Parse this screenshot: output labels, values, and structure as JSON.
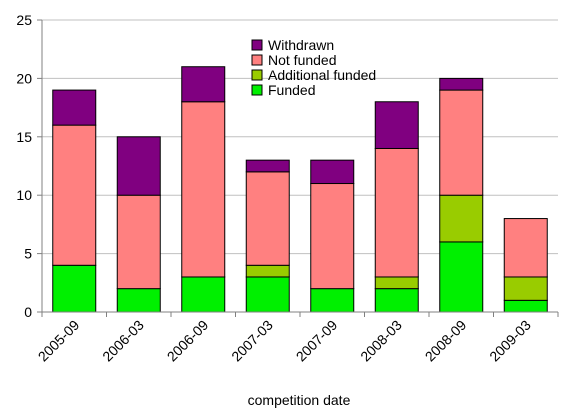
{
  "chart_data": {
    "type": "bar",
    "stacked": true,
    "categories": [
      "2005-09",
      "2006-03",
      "2006-09",
      "2007-03",
      "2007-09",
      "2008-03",
      "2008-09",
      "2009-03"
    ],
    "series": [
      {
        "name": "Funded",
        "color": "#00f000",
        "values": [
          4,
          2,
          3,
          3,
          2,
          2,
          6,
          1
        ]
      },
      {
        "name": "Additional funded",
        "color": "#99cc00",
        "values": [
          0,
          0,
          0,
          1,
          0,
          1,
          4,
          2
        ]
      },
      {
        "name": "Not funded",
        "color": "#ff8080",
        "values": [
          12,
          8,
          15,
          8,
          9,
          11,
          9,
          5
        ]
      },
      {
        "name": "Withdrawn",
        "color": "#800080",
        "values": [
          3,
          5,
          3,
          1,
          2,
          4,
          1,
          0
        ]
      }
    ],
    "legend_order": [
      "Withdrawn",
      "Not funded",
      "Additional funded",
      "Funded"
    ],
    "legend_position": "top-center",
    "xlabel": "competition date",
    "ylabel": "",
    "ylim": [
      0,
      25
    ],
    "yticks": [
      0,
      5,
      10,
      15,
      20,
      25
    ],
    "grid": "horizontal",
    "gridline_color": "#c0c0c0"
  }
}
